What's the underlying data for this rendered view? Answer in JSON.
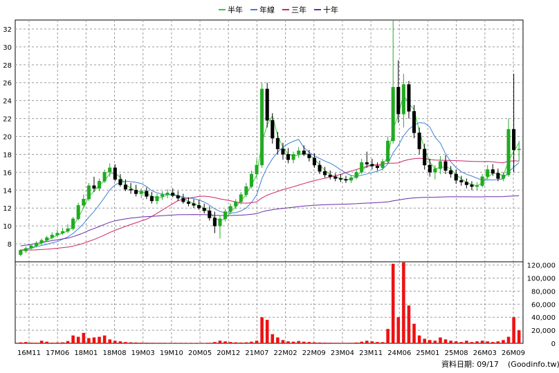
{
  "chart_data": {
    "type": "candlestick",
    "legend": [
      {
        "name": "半年",
        "color": "#2ecc2e"
      },
      {
        "name": "年線",
        "color": "#3a7fd6"
      },
      {
        "name": "三年",
        "color": "#cc2266"
      },
      {
        "name": "十年",
        "color": "#6a2aa8"
      }
    ],
    "legend_position": "top-center",
    "grid": true,
    "price_axis": {
      "ylim": [
        6,
        33
      ],
      "ticks": [
        8,
        10,
        12,
        14,
        16,
        18,
        20,
        22,
        24,
        26,
        28,
        30,
        32
      ]
    },
    "volume_axis": {
      "ylim": [
        0,
        125000
      ],
      "ticks": [
        0,
        20000,
        40000,
        60000,
        80000,
        100000,
        120000
      ],
      "tick_labels": [
        "0",
        "20,000",
        "40,000",
        "60,000",
        "80,000",
        "100,000",
        "120,000"
      ]
    },
    "x_tick_labels": [
      "16M11",
      "17M06",
      "18M01",
      "18M08",
      "19M03",
      "19M10",
      "20M05",
      "20M12",
      "21M07",
      "22M02",
      "22M09",
      "23M04",
      "23M11",
      "24M06",
      "25M01",
      "25M08",
      "26M03",
      "26M09"
    ],
    "up_color": "#22aa22",
    "down_color": "#000000",
    "volume_color": "#ee1111",
    "candles": [
      [
        6.8,
        7.4,
        6.6,
        7.3
      ],
      [
        7.2,
        7.7,
        7.0,
        7.5
      ],
      [
        7.5,
        8.0,
        7.3,
        7.8
      ],
      [
        7.8,
        8.3,
        7.6,
        8.1
      ],
      [
        8.1,
        8.6,
        7.9,
        8.4
      ],
      [
        8.4,
        8.9,
        8.2,
        8.7
      ],
      [
        8.7,
        9.3,
        8.5,
        9.0
      ],
      [
        9.0,
        9.6,
        8.8,
        9.2
      ],
      [
        9.2,
        9.8,
        9.0,
        9.4
      ],
      [
        9.4,
        10.2,
        9.2,
        9.7
      ],
      [
        9.7,
        11.0,
        9.5,
        10.8
      ],
      [
        10.8,
        12.6,
        10.6,
        12.3
      ],
      [
        12.3,
        13.5,
        12.0,
        13.0
      ],
      [
        13.0,
        14.8,
        12.8,
        14.5
      ],
      [
        14.5,
        15.5,
        13.8,
        14.2
      ],
      [
        14.2,
        15.3,
        13.9,
        15.0
      ],
      [
        15.0,
        16.3,
        14.8,
        16.0
      ],
      [
        16.0,
        17.0,
        15.5,
        16.5
      ],
      [
        16.5,
        16.9,
        15.0,
        15.2
      ],
      [
        15.2,
        15.8,
        14.4,
        14.6
      ],
      [
        14.6,
        15.2,
        13.9,
        14.1
      ],
      [
        14.1,
        14.8,
        13.6,
        14.0
      ],
      [
        14.0,
        14.6,
        13.3,
        13.6
      ],
      [
        13.6,
        14.2,
        13.1,
        13.9
      ],
      [
        13.9,
        14.3,
        13.0,
        13.3
      ],
      [
        13.3,
        13.8,
        12.5,
        12.8
      ],
      [
        12.8,
        13.6,
        12.4,
        13.3
      ],
      [
        13.3,
        13.9,
        12.9,
        13.5
      ],
      [
        13.5,
        14.1,
        13.1,
        13.7
      ],
      [
        13.7,
        14.2,
        13.2,
        13.4
      ],
      [
        13.4,
        13.9,
        12.8,
        13.1
      ],
      [
        13.1,
        13.6,
        12.5,
        12.7
      ],
      [
        12.7,
        13.2,
        12.2,
        12.5
      ],
      [
        12.5,
        13.0,
        12.0,
        12.3
      ],
      [
        12.3,
        12.9,
        11.8,
        12.0
      ],
      [
        12.0,
        12.5,
        11.4,
        11.7
      ],
      [
        11.7,
        12.2,
        10.6,
        10.9
      ],
      [
        10.9,
        11.6,
        9.2,
        10.0
      ],
      [
        10.0,
        11.2,
        8.6,
        10.8
      ],
      [
        10.8,
        11.9,
        10.5,
        11.6
      ],
      [
        11.6,
        12.5,
        11.3,
        12.2
      ],
      [
        12.2,
        13.0,
        11.9,
        12.7
      ],
      [
        12.7,
        13.8,
        12.4,
        13.5
      ],
      [
        13.5,
        14.8,
        13.2,
        14.4
      ],
      [
        14.4,
        16.2,
        14.2,
        15.8
      ],
      [
        15.8,
        17.5,
        15.4,
        16.8
      ],
      [
        16.8,
        26.0,
        16.5,
        25.3
      ],
      [
        25.3,
        26.0,
        21.0,
        21.8
      ],
      [
        21.8,
        22.6,
        19.2,
        19.8
      ],
      [
        19.8,
        20.5,
        18.0,
        18.6
      ],
      [
        18.6,
        19.3,
        17.4,
        18.0
      ],
      [
        18.0,
        18.7,
        17.0,
        17.4
      ],
      [
        17.4,
        18.3,
        17.0,
        18.0
      ],
      [
        18.0,
        18.8,
        17.6,
        18.4
      ],
      [
        18.4,
        19.0,
        17.8,
        18.0
      ],
      [
        18.0,
        18.5,
        17.2,
        17.6
      ],
      [
        17.6,
        18.1,
        16.5,
        16.8
      ],
      [
        16.8,
        17.3,
        15.8,
        16.1
      ],
      [
        16.1,
        16.6,
        15.4,
        15.7
      ],
      [
        15.7,
        16.2,
        15.2,
        15.5
      ],
      [
        15.5,
        15.9,
        15.0,
        15.3
      ],
      [
        15.3,
        15.8,
        14.9,
        15.2
      ],
      [
        15.2,
        15.6,
        14.8,
        15.1
      ],
      [
        15.1,
        15.7,
        14.8,
        15.4
      ],
      [
        15.4,
        16.3,
        15.2,
        16.0
      ],
      [
        16.0,
        17.5,
        15.8,
        17.1
      ],
      [
        17.1,
        18.3,
        16.5,
        16.9
      ],
      [
        16.9,
        17.5,
        16.3,
        16.7
      ],
      [
        16.7,
        17.1,
        16.2,
        16.5
      ],
      [
        16.5,
        17.5,
        16.2,
        17.2
      ],
      [
        17.2,
        20.0,
        17.0,
        19.5
      ],
      [
        19.5,
        33.0,
        19.2,
        25.5
      ],
      [
        25.5,
        28.5,
        21.5,
        22.5
      ],
      [
        22.5,
        27.0,
        21.0,
        25.8
      ],
      [
        25.8,
        26.2,
        22.0,
        22.8
      ],
      [
        22.8,
        23.5,
        19.8,
        20.4
      ],
      [
        20.4,
        21.0,
        18.0,
        18.6
      ],
      [
        18.6,
        19.2,
        16.3,
        16.8
      ],
      [
        16.8,
        17.5,
        15.5,
        16.0
      ],
      [
        16.0,
        16.8,
        15.2,
        16.4
      ],
      [
        16.4,
        17.8,
        15.8,
        17.2
      ],
      [
        17.2,
        17.9,
        15.8,
        16.2
      ],
      [
        16.2,
        16.7,
        15.4,
        15.8
      ],
      [
        15.8,
        16.3,
        14.7,
        15.1
      ],
      [
        15.1,
        15.6,
        14.5,
        14.9
      ],
      [
        14.9,
        15.3,
        14.2,
        14.6
      ],
      [
        14.6,
        15.0,
        14.0,
        14.4
      ],
      [
        14.4,
        14.9,
        14.0,
        14.5
      ],
      [
        14.5,
        15.8,
        14.3,
        15.5
      ],
      [
        15.5,
        16.8,
        15.2,
        16.3
      ],
      [
        16.3,
        16.9,
        15.6,
        15.9
      ],
      [
        15.9,
        16.4,
        15.0,
        15.3
      ],
      [
        15.3,
        16.0,
        15.0,
        15.7
      ],
      [
        15.7,
        22.0,
        15.5,
        20.8
      ],
      [
        20.8,
        27.0,
        16.0,
        18.5
      ],
      [
        18.5,
        19.5,
        17.2,
        18.6
      ]
    ],
    "volumes": [
      1500,
      2000,
      1000,
      900,
      4000,
      2500,
      1000,
      1200,
      1500,
      3500,
      12000,
      10000,
      16000,
      8000,
      9000,
      10000,
      12000,
      6000,
      4000,
      3000,
      2000,
      1500,
      1200,
      1000,
      900,
      800,
      700,
      700,
      600,
      600,
      600,
      600,
      500,
      500,
      500,
      500,
      800,
      2000,
      4000,
      3000,
      2000,
      1500,
      1200,
      1500,
      2500,
      4000,
      40000,
      36000,
      14000,
      9000,
      5000,
      3000,
      2500,
      3500,
      2500,
      2000,
      1500,
      1200,
      1000,
      900,
      800,
      700,
      700,
      800,
      1200,
      2500,
      4000,
      3000,
      2000,
      1800,
      22000,
      122000,
      40000,
      124000,
      58000,
      30000,
      12000,
      7000,
      5000,
      4000,
      9000,
      6000,
      4000,
      3000,
      2000,
      4000,
      2000,
      3000,
      4000,
      3000,
      2000,
      3000,
      5000,
      10000,
      40000,
      20000
    ]
  },
  "footer": {
    "label": "資料日期: 09/17",
    "source": "(Goodinfo.tw)"
  }
}
